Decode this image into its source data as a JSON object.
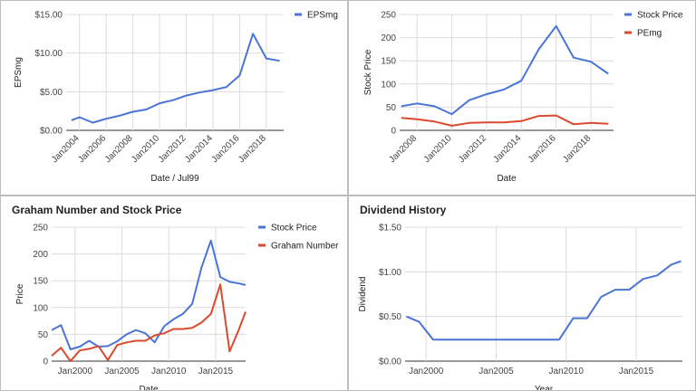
{
  "chart_data": [
    {
      "type": "line",
      "title": "",
      "xlabel": "Date / Jul99",
      "ylabel": "EPSmg",
      "xlim": [
        2003,
        2019.3
      ],
      "ylim": [
        0,
        15
      ],
      "yticks": [
        0,
        5,
        10,
        15
      ],
      "ytick_labels": [
        "$0.00",
        "$5.00",
        "$10.00",
        "$15.00"
      ],
      "xticks": [
        2004,
        2006,
        2008,
        2010,
        2012,
        2014,
        2016,
        2018
      ],
      "xtick_labels": [
        "Jan2004",
        "Jan2006",
        "Jan2008",
        "Jan2010",
        "Jan2012",
        "Jan2014",
        "Jan2016",
        "Jan2018"
      ],
      "xtick_rotate": true,
      "legend_position": "top-right",
      "grid": true,
      "series": [
        {
          "name": "EPSmg",
          "color": "#4a74d6",
          "x": [
            2003.4,
            2004,
            2005,
            2006,
            2007,
            2008,
            2009,
            2010,
            2011,
            2012,
            2013,
            2014,
            2015,
            2016,
            2017,
            2018,
            2019
          ],
          "y": [
            1.3,
            1.7,
            1.0,
            1.5,
            1.9,
            2.4,
            2.7,
            3.5,
            3.9,
            4.5,
            4.9,
            5.2,
            5.6,
            7.1,
            12.5,
            9.3,
            9.0
          ]
        }
      ]
    },
    {
      "type": "line",
      "title": "",
      "xlabel": "Date",
      "ylabel": "Stock Price",
      "xlim": [
        2007,
        2019.3
      ],
      "ylim": [
        0,
        250
      ],
      "yticks": [
        0,
        50,
        100,
        150,
        200,
        250
      ],
      "ytick_labels": [
        "0",
        "50",
        "100",
        "150",
        "200",
        "250"
      ],
      "xticks": [
        2008,
        2010,
        2012,
        2014,
        2016,
        2018
      ],
      "xtick_labels": [
        "Jan2008",
        "Jan2010",
        "Jan2012",
        "Jan2014",
        "Jan2016",
        "Jan2018"
      ],
      "xtick_rotate": true,
      "legend_position": "top-right",
      "grid": true,
      "series": [
        {
          "name": "Stock Price",
          "color": "#4a74d6",
          "x": [
            2007.1,
            2008,
            2009,
            2010,
            2011,
            2012,
            2013,
            2014,
            2015,
            2016,
            2017,
            2018,
            2019
          ],
          "y": [
            52,
            58,
            52,
            35,
            65,
            78,
            88,
            107,
            175,
            225,
            157,
            148,
            122
          ]
        },
        {
          "name": "PEmg",
          "color": "#db4a2e",
          "x": [
            2007.1,
            2008,
            2009,
            2010,
            2011,
            2012,
            2013,
            2014,
            2015,
            2016,
            2017,
            2018,
            2019
          ],
          "y": [
            27,
            24,
            19,
            10,
            16,
            17,
            17,
            20,
            31,
            32,
            13,
            16,
            14
          ]
        }
      ]
    },
    {
      "type": "line",
      "title": "Graham Number and Stock Price",
      "xlabel": "Date",
      "ylabel": "Price",
      "xlim": [
        1997.5,
        2018.2
      ],
      "ylim": [
        0,
        250
      ],
      "yticks": [
        0,
        50,
        100,
        150,
        200,
        250
      ],
      "ytick_labels": [
        "0",
        "50",
        "100",
        "150",
        "200",
        "250"
      ],
      "xticks": [
        2000,
        2005,
        2010,
        2015
      ],
      "xtick_labels": [
        "Jan2000",
        "Jan2005",
        "Jan2010",
        "Jan2015"
      ],
      "xtick_rotate": false,
      "legend_position": "top-right",
      "grid": true,
      "series": [
        {
          "name": "Stock Price",
          "color": "#4a74d6",
          "x": [
            1997.5,
            1998.5,
            1999.5,
            2000.5,
            2001.5,
            2002.5,
            2003.5,
            2004.5,
            2005.5,
            2006.5,
            2007.5,
            2008.5,
            2009.5,
            2010.5,
            2011.5,
            2012.5,
            2013.5,
            2014.5,
            2015.5,
            2016.5,
            2017.5,
            2018.2
          ],
          "y": [
            58,
            67,
            22,
            27,
            38,
            27,
            28,
            37,
            50,
            58,
            52,
            35,
            65,
            78,
            88,
            107,
            175,
            225,
            157,
            148,
            145,
            142
          ]
        },
        {
          "name": "Graham Number",
          "color": "#db4a2e",
          "x": [
            1997.5,
            1998.5,
            1999.5,
            2000.5,
            2001.5,
            2002.5,
            2003.5,
            2004.5,
            2005.5,
            2006.5,
            2007.5,
            2008.5,
            2009.5,
            2010.5,
            2011.5,
            2012.5,
            2013.5,
            2014.5,
            2015.5,
            2016.5,
            2017.5,
            2018.2
          ],
          "y": [
            10,
            25,
            0,
            20,
            23,
            28,
            2,
            30,
            35,
            38,
            38,
            48,
            52,
            60,
            60,
            62,
            72,
            88,
            143,
            18,
            60,
            92
          ]
        }
      ]
    },
    {
      "type": "line",
      "title": "Dividend History",
      "xlabel": "Year",
      "ylabel": "Dividend",
      "xlim": [
        1998.5,
        2018.3
      ],
      "ylim": [
        0,
        1.5
      ],
      "yticks": [
        0,
        0.5,
        1,
        1.5
      ],
      "ytick_labels": [
        "$0.00",
        "$0.50",
        "$1.00",
        "$1.50"
      ],
      "xticks": [
        2000,
        2005,
        2010,
        2015
      ],
      "xtick_labels": [
        "Jan2000",
        "Jan2005",
        "Jan2010",
        "Jan2015"
      ],
      "xtick_rotate": false,
      "legend_position": "none",
      "grid": true,
      "series": [
        {
          "name": "",
          "color": "#4a74d6",
          "x": [
            1998.6,
            1999.5,
            2000.5,
            2001.5,
            2002.5,
            2003.5,
            2004.5,
            2005.5,
            2006.5,
            2007.5,
            2008.5,
            2009.5,
            2010.5,
            2011.5,
            2012.5,
            2013.5,
            2014.5,
            2015.5,
            2016.5,
            2017.5,
            2018.2
          ],
          "y": [
            0.5,
            0.44,
            0.24,
            0.24,
            0.24,
            0.24,
            0.24,
            0.24,
            0.24,
            0.24,
            0.24,
            0.24,
            0.48,
            0.48,
            0.72,
            0.8,
            0.8,
            0.92,
            0.96,
            1.08,
            1.12
          ]
        }
      ]
    }
  ]
}
